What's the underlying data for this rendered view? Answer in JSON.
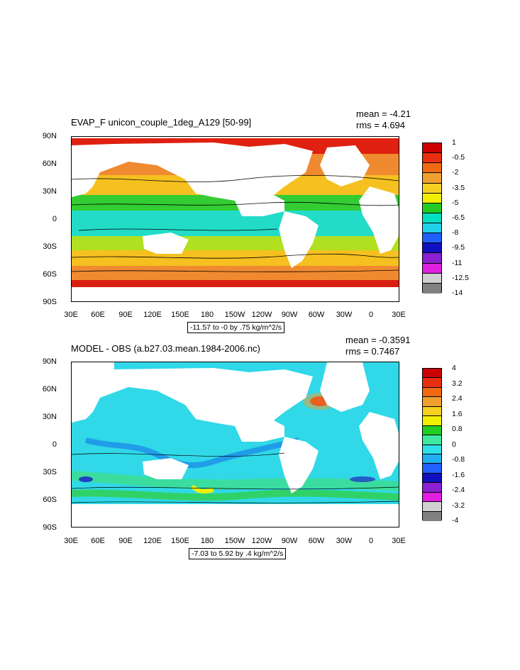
{
  "panels": [
    {
      "title": "EVAP_F unicon_couple_1deg_A129 [50-99]",
      "mean": "mean = -4.21",
      "rms": "rms = 4.694",
      "subtitle": "-11.57 to -0 by .75 kg/m^2/s",
      "lat_labels": [
        "90N",
        "60N",
        "30N",
        "0",
        "30S",
        "60S",
        "90S"
      ],
      "lon_labels": [
        "30E",
        "60E",
        "90E",
        "120E",
        "150E",
        "180",
        "150W",
        "120W",
        "90W",
        "60W",
        "30W",
        "0",
        "30E"
      ],
      "colorbar_labels": [
        "1",
        "-0.5",
        "-2",
        "-3.5",
        "-5",
        "-6.5",
        "-8",
        "-9.5",
        "-11",
        "-12.5",
        "-14"
      ],
      "colorbar_colors": [
        "#cc0000",
        "#e83010",
        "#f06a10",
        "#f0a030",
        "#f5d020",
        "#f0f000",
        "#22cc22",
        "#00e0c0",
        "#20d0e8",
        "#2060ff",
        "#1010c0",
        "#8a20d0",
        "#e020e0",
        "#d0d0d0",
        "#808080"
      ]
    },
    {
      "title": "MODEL - OBS (a.b27.03.mean.1984-2006.nc)",
      "mean": "mean = -0.3591",
      "rms": "rms = 0.7467",
      "subtitle": "-7.03 to 5.92 by .4 kg/m^2/s",
      "lat_labels": [
        "90N",
        "60N",
        "30N",
        "0",
        "30S",
        "60S",
        "90S"
      ],
      "lon_labels": [
        "30E",
        "60E",
        "90E",
        "120E",
        "150E",
        "180",
        "150W",
        "120W",
        "90W",
        "60W",
        "30W",
        "0",
        "30E"
      ],
      "colorbar_labels": [
        "4",
        "3.2",
        "2.4",
        "1.6",
        "0.8",
        "0",
        "-0.8",
        "-1.6",
        "-2.4",
        "-3.2",
        "-4"
      ],
      "colorbar_colors": [
        "#cc0000",
        "#e83010",
        "#f06a10",
        "#f0a030",
        "#f5d020",
        "#f0f000",
        "#22cc22",
        "#40e8a0",
        "#30e0e8",
        "#20b0f0",
        "#2060ff",
        "#1010c0",
        "#8a20d0",
        "#e020e0",
        "#d0d0d0",
        "#808080"
      ]
    }
  ]
}
